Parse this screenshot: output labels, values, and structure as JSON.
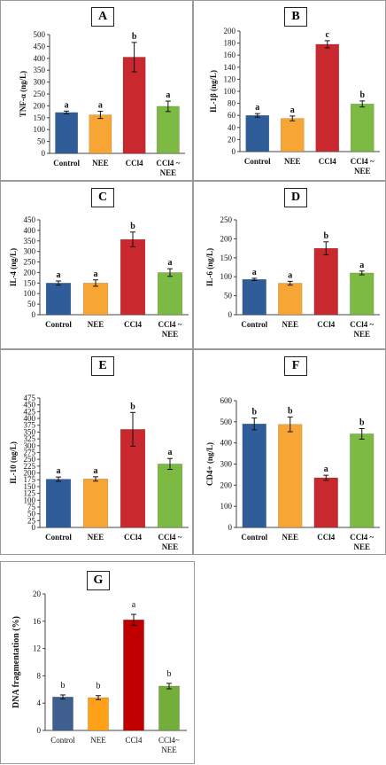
{
  "chart_data": [
    {
      "panel": "A",
      "type": "bar",
      "categories": [
        "Control",
        "NEE",
        "CCl4",
        "CCl4 ~ NEE"
      ],
      "values": [
        172,
        162,
        405,
        198
      ],
      "errors": [
        6,
        15,
        62,
        22
      ],
      "letters": [
        "a",
        "a",
        "b",
        "a"
      ],
      "ylabel": "TNF-α (ng/L)",
      "ylim": [
        0,
        500
      ],
      "yticks": [
        0,
        50,
        100,
        150,
        200,
        250,
        300,
        350,
        400,
        450,
        500
      ],
      "colors": [
        "#2e5d99",
        "#f7a534",
        "#c8282e",
        "#7cba43"
      ]
    },
    {
      "panel": "B",
      "type": "bar",
      "categories": [
        "Control",
        "NEE",
        "CCl4",
        "CCl4 ~ NEE"
      ],
      "values": [
        60,
        55,
        178,
        79
      ],
      "errors": [
        3,
        4,
        6,
        5
      ],
      "letters": [
        "a",
        "a",
        "c",
        "b"
      ],
      "ylabel": "IL-1β (ng/L)",
      "ylim": [
        0,
        200
      ],
      "yticks": [
        0,
        20,
        40,
        60,
        80,
        100,
        120,
        140,
        160,
        180,
        200
      ],
      "colors": [
        "#2e5d99",
        "#f7a534",
        "#c8282e",
        "#7cba43"
      ]
    },
    {
      "panel": "C",
      "type": "bar",
      "categories": [
        "Control",
        "NEE",
        "CCl4",
        "CCl4 ~ NEE"
      ],
      "values": [
        150,
        150,
        357,
        200
      ],
      "errors": [
        10,
        15,
        35,
        18
      ],
      "letters": [
        "a",
        "a",
        "b",
        "a"
      ],
      "ylabel": "IL-4 (ng/L)",
      "ylim": [
        0,
        450
      ],
      "yticks": [
        0,
        50,
        100,
        150,
        200,
        250,
        300,
        350,
        400,
        450
      ],
      "colors": [
        "#2e5d99",
        "#f7a534",
        "#c8282e",
        "#7cba43"
      ]
    },
    {
      "panel": "D",
      "type": "bar",
      "categories": [
        "Control",
        "NEE",
        "CCl4",
        "CCl4 ~ NEE"
      ],
      "values": [
        93,
        83,
        175,
        110
      ],
      "errors": [
        3,
        5,
        17,
        5
      ],
      "letters": [
        "a",
        "a",
        "b",
        "a"
      ],
      "ylabel": "IL-6 (ng/L)",
      "ylim": [
        0,
        250
      ],
      "yticks": [
        0,
        50,
        100,
        150,
        200,
        250
      ],
      "colors": [
        "#2e5d99",
        "#f7a534",
        "#c8282e",
        "#7cba43"
      ]
    },
    {
      "panel": "E",
      "type": "bar",
      "categories": [
        "Control",
        "NEE",
        "CCl4",
        "CCl4 ~ NEE"
      ],
      "values": [
        177,
        178,
        360,
        233
      ],
      "errors": [
        8,
        8,
        62,
        20
      ],
      "letters": [
        "a",
        "a",
        "b",
        "a"
      ],
      "ylabel": "IL-10 (ng/L)",
      "ylim": [
        0,
        475
      ],
      "yticks": [
        0,
        25,
        50,
        75,
        100,
        125,
        150,
        175,
        200,
        225,
        250,
        275,
        300,
        325,
        350,
        375,
        400,
        425,
        450,
        475
      ],
      "colors": [
        "#2e5d99",
        "#f7a534",
        "#c8282e",
        "#7cba43"
      ]
    },
    {
      "panel": "F",
      "type": "bar",
      "categories": [
        "Control",
        "NEE",
        "CCl4",
        "CCl4 ~ NEE"
      ],
      "values": [
        490,
        488,
        235,
        443
      ],
      "errors": [
        28,
        35,
        12,
        25
      ],
      "letters": [
        "b",
        "b",
        "a",
        "b"
      ],
      "ylabel": "CD4+ (ng/L)",
      "ylim": [
        0,
        600
      ],
      "yticks": [
        0,
        100,
        200,
        300,
        400,
        500,
        600
      ],
      "colors": [
        "#2e5d99",
        "#f7a534",
        "#c8282e",
        "#7cba43"
      ]
    },
    {
      "panel": "G",
      "type": "bar",
      "categories": [
        "Control",
        "NEE",
        "CCl4",
        "CCl4~ NEE"
      ],
      "values": [
        4.9,
        4.8,
        16.2,
        6.5
      ],
      "errors": [
        0.3,
        0.3,
        0.8,
        0.4
      ],
      "letters": [
        "b",
        "b",
        "a",
        "b"
      ],
      "ylabel": "DNA fragmentation  (%)",
      "ylim": [
        0,
        20
      ],
      "yticks": [
        0,
        4,
        8,
        12,
        16,
        20
      ],
      "colors": [
        "#3e5f8f",
        "#ffa21a",
        "#c00000",
        "#73ad3a"
      ]
    }
  ]
}
